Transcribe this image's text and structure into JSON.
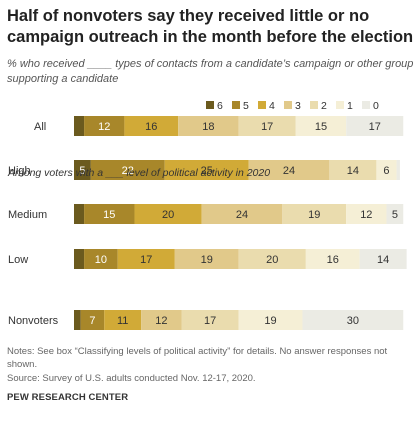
{
  "title": "Half of nonvoters say they received little or no campaign outreach in the month before the election",
  "subtitle": "% who received ____ types of contacts from a candidate’s campaign or other group supporting a candidate",
  "note": "Notes: See box “Classifying levels of political activity” for details. No answer responses not shown.",
  "source": "Source: Survey of U.S. adults conducted Nov. 12-17, 2020.",
  "credit": "PEW RESEARCH CENTER",
  "section_label": "Among voters with a ___ level of political activity in 2020",
  "colors": [
    "#6b5a1e",
    "#a8872a",
    "#d1aa37",
    "#e1c98a",
    "#eadcae",
    "#f5efd6",
    "#ebebe4"
  ],
  "chart_data": {
    "type": "bar",
    "orientation": "horizontal",
    "stacked": true,
    "legend_position": "top-right",
    "series_names": [
      "6",
      "5",
      "4",
      "3",
      "2",
      "1",
      "0"
    ],
    "rows": [
      {
        "label": "All",
        "values": [
          null,
          12,
          16,
          18,
          17,
          15,
          17
        ]
      },
      {
        "label": "High",
        "values": [
          5,
          22,
          25,
          24,
          14,
          6,
          null
        ]
      },
      {
        "label": "Medium",
        "values": [
          null,
          15,
          20,
          24,
          19,
          12,
          5
        ]
      },
      {
        "label": "Low",
        "values": [
          null,
          10,
          17,
          19,
          20,
          16,
          14
        ]
      },
      {
        "label": "Nonvoters",
        "values": [
          null,
          7,
          11,
          12,
          17,
          19,
          30
        ]
      }
    ],
    "estimated_unlabeled": {
      "All": [
        3,
        null,
        null,
        null,
        null,
        null,
        null
      ],
      "High": [
        null,
        null,
        null,
        null,
        null,
        null,
        1
      ],
      "Medium": [
        3,
        null,
        null,
        null,
        null,
        null,
        null
      ],
      "Low": [
        3,
        null,
        null,
        null,
        null,
        null,
        null
      ],
      "Nonvoters": [
        2,
        null,
        null,
        null,
        null,
        null,
        null
      ]
    },
    "xlim": [
      0,
      100
    ]
  }
}
